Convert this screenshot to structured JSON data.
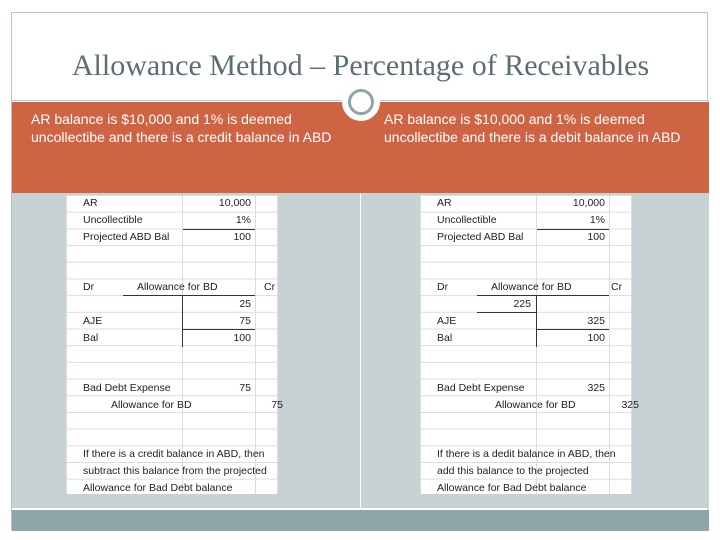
{
  "title": "Allowance Method – Percentage of Receivables",
  "left": {
    "header": "AR balance is $10,000 and 1% is deemed uncollectibe and there is a credit balance in ABD",
    "rows": {
      "ar_label": "AR",
      "ar_value": "10,000",
      "uncollectible_label": "Uncollectible",
      "uncollectible_value": "1%",
      "projected_label": "Projected ABD Bal",
      "projected_value": "100",
      "dr": "Dr",
      "account": "Allowance for BD",
      "cr": "Cr",
      "beginning_value": "25",
      "aje_label": "AJE",
      "aje_value": "75",
      "bal_label": "Bal",
      "bal_value": "100",
      "bde_label": "Bad Debt Expense",
      "bde_value": "75",
      "afbd_label": "Allowance for BD",
      "afbd_value": "75",
      "note_1": "If there is a credit balance in ABD, then",
      "note_2": "subtract this balance from the projected",
      "note_3": "Allowance for Bad Debt balance"
    }
  },
  "right": {
    "header": "AR balance is $10,000 and 1% is deemed uncollectibe and there is a debit balance in ABD",
    "rows": {
      "ar_label": "AR",
      "ar_value": "10,000",
      "uncollectible_label": "Uncollectible",
      "uncollectible_value": "1%",
      "projected_label": "Projected ABD Bal",
      "projected_value": "100",
      "dr": "Dr",
      "account": "Allowance for BD",
      "cr": "Cr",
      "beginning_value": "225",
      "aje_label": "AJE",
      "aje_value": "325",
      "bal_label": "Bal",
      "bal_value": "100",
      "bde_label": "Bad Debt Expense",
      "bde_value": "325",
      "afbd_label": "Allowance for BD",
      "afbd_value": "325",
      "note_1": "If there is a dedit balance in ABD, then",
      "note_2": "add this balance to the projected",
      "note_3": "Allowance for Bad Debt balance"
    }
  }
}
